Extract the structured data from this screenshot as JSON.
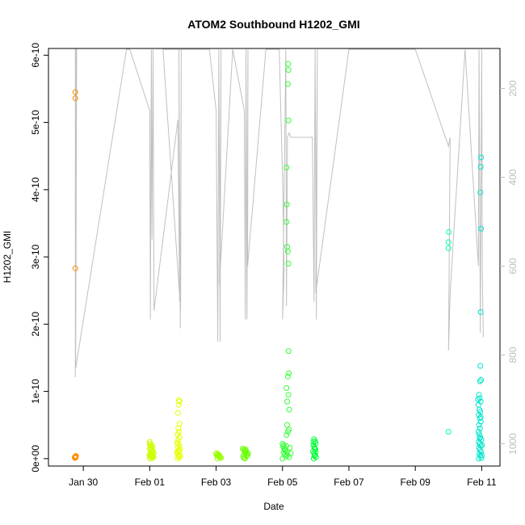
{
  "chart_data": {
    "type": "scatter",
    "title": "ATOM2 Southbound H1202_GMI",
    "xlabel": "Date",
    "ylabel": "H1202_GMI",
    "x_ticks": [
      {
        "day": 2,
        "label": "Jan 30"
      },
      {
        "day": 4,
        "label": "Feb 01"
      },
      {
        "day": 6,
        "label": "Feb 03"
      },
      {
        "day": 8,
        "label": "Feb 05"
      },
      {
        "day": 10,
        "label": "Feb 07"
      },
      {
        "day": 12,
        "label": "Feb 09"
      },
      {
        "day": 14,
        "label": "Feb 11"
      }
    ],
    "y_ticks": [
      {
        "value": 0,
        "label": "0e+00"
      },
      {
        "value": 1e-10,
        "label": "1e-10"
      },
      {
        "value": 2e-10,
        "label": "2e-10"
      },
      {
        "value": 3e-10,
        "label": "3e-10"
      },
      {
        "value": 4e-10,
        "label": "4e-10"
      },
      {
        "value": 5e-10,
        "label": "5e-10"
      },
      {
        "value": 6e-10,
        "label": "6e-10"
      }
    ],
    "right_ticks": [
      {
        "value": 200,
        "label": "200"
      },
      {
        "value": 400,
        "label": "400"
      },
      {
        "value": 600,
        "label": "600"
      },
      {
        "value": 800,
        "label": "800"
      },
      {
        "value": 1000,
        "label": "1000"
      }
    ],
    "xlim": [
      0.95,
      14.55
    ],
    "ylim": [
      -1.1e-11,
      6.1e-10
    ],
    "right_ylim": [
      1050,
      110
    ],
    "grid": false,
    "colors": {
      "axis": "#000000",
      "right_axis": "#bdbdbd",
      "track": "#c0c0c0"
    },
    "series": [
      {
        "color": "#ff8c00",
        "points": [
          [
            1.76,
            5.45e-10
          ],
          [
            1.76,
            5.36e-10
          ],
          [
            1.76,
            2.83e-10
          ],
          [
            1.74,
            2e-12
          ],
          [
            1.76,
            3e-12
          ],
          [
            1.78,
            4e-12
          ],
          [
            1.75,
            1e-12
          ],
          [
            1.77,
            2e-12
          ]
        ]
      },
      {
        "color": "#ccff00",
        "points": [
          [
            4.0,
            2.5e-11
          ],
          [
            4.02,
            2.2e-11
          ],
          [
            4.05,
            2e-11
          ],
          [
            4.08,
            1.8e-11
          ],
          [
            4.0,
            1.5e-11
          ],
          [
            4.03,
            1.2e-11
          ],
          [
            4.06,
            1e-11
          ],
          [
            4.09,
            9e-12
          ],
          [
            4.01,
            7e-12
          ],
          [
            4.04,
            6e-12
          ],
          [
            4.07,
            5e-12
          ],
          [
            4.1,
            4e-12
          ],
          [
            4.02,
            3e-12
          ],
          [
            4.05,
            2e-12
          ],
          [
            4.08,
            1e-12
          ],
          [
            4.0,
            0
          ],
          [
            4.03,
            1.6e-11
          ],
          [
            4.06,
            1.3e-11
          ],
          [
            4.12,
            8e-12
          ],
          [
            4.1,
            1.1e-11
          ],
          [
            4.04,
            1.9e-11
          ],
          [
            3.99,
            5e-12
          ],
          [
            4.11,
            2e-12
          ],
          [
            4.07,
            1.4e-11
          ],
          [
            4.0,
            2.2e-11
          ]
        ]
      },
      {
        "color": "#e6ff00",
        "points": [
          [
            4.88,
            8.7e-11
          ],
          [
            4.9,
            8.5e-11
          ],
          [
            4.87,
            8e-11
          ],
          [
            4.85,
            6.8e-11
          ],
          [
            4.9,
            5.2e-11
          ],
          [
            4.86,
            4.5e-11
          ],
          [
            4.88,
            4e-11
          ],
          [
            4.84,
            3.6e-11
          ],
          [
            4.9,
            3.2e-11
          ],
          [
            4.86,
            2.8e-11
          ],
          [
            4.83,
            2.4e-11
          ],
          [
            4.89,
            2e-11
          ],
          [
            4.85,
            1.7e-11
          ],
          [
            4.91,
            1.4e-11
          ],
          [
            4.87,
            1.1e-11
          ],
          [
            4.83,
            8e-12
          ],
          [
            4.9,
            6e-12
          ],
          [
            4.86,
            4e-12
          ],
          [
            4.88,
            2e-12
          ],
          [
            4.84,
            0
          ],
          [
            4.92,
            3e-12
          ],
          [
            4.82,
            1e-11
          ],
          [
            4.89,
            1.2e-11
          ],
          [
            4.85,
            2.2e-11
          ]
        ]
      },
      {
        "color": "#99ff00",
        "points": [
          [
            6.0,
            8e-12
          ],
          [
            6.03,
            6e-12
          ],
          [
            6.06,
            4e-12
          ],
          [
            6.09,
            3e-12
          ],
          [
            6.12,
            2e-12
          ],
          [
            6.15,
            1e-12
          ],
          [
            6.02,
            5e-12
          ],
          [
            6.05,
            7e-12
          ],
          [
            6.08,
            4e-12
          ],
          [
            6.11,
            2e-12
          ],
          [
            6.04,
            0
          ],
          [
            6.1,
            5e-12
          ]
        ]
      },
      {
        "color": "#66ff00",
        "points": [
          [
            6.8,
            1.5e-11
          ],
          [
            6.83,
            1.3e-11
          ],
          [
            6.86,
            1.1e-11
          ],
          [
            6.89,
            9e-12
          ],
          [
            6.92,
            7e-12
          ],
          [
            6.95,
            5e-12
          ],
          [
            6.81,
            3e-12
          ],
          [
            6.84,
            1e-12
          ],
          [
            6.87,
            0
          ],
          [
            6.9,
            1.2e-11
          ],
          [
            6.93,
            4e-12
          ],
          [
            6.96,
            8e-12
          ],
          [
            6.85,
            6e-12
          ],
          [
            6.88,
            1.4e-11
          ]
        ]
      },
      {
        "color": "#33ff33",
        "points": [
          [
            8.17,
            5.87e-10
          ],
          [
            8.18,
            5.78e-10
          ],
          [
            8.16,
            5.57e-10
          ],
          [
            8.18,
            5.03e-10
          ],
          [
            8.12,
            4.33e-10
          ],
          [
            8.13,
            3.78e-10
          ],
          [
            8.12,
            3.52e-10
          ],
          [
            8.14,
            3.15e-10
          ],
          [
            8.16,
            3.08e-10
          ],
          [
            8.18,
            2.9e-10
          ],
          [
            8.18,
            1.6e-10
          ],
          [
            8.19,
            1.27e-10
          ],
          [
            8.16,
            1.22e-10
          ],
          [
            8.12,
            1.05e-10
          ],
          [
            8.18,
            9.5e-11
          ],
          [
            8.14,
            8.5e-11
          ],
          [
            8.2,
            7.3e-11
          ],
          [
            8.14,
            5e-11
          ],
          [
            8.19,
            4.3e-11
          ],
          [
            8.16,
            4e-11
          ],
          [
            8.12,
            3.5e-11
          ],
          [
            8.0,
            2.2e-11
          ],
          [
            8.02,
            1.8e-11
          ],
          [
            8.05,
            1.5e-11
          ],
          [
            8.08,
            1.2e-11
          ],
          [
            8.03,
            9e-12
          ],
          [
            8.06,
            6e-12
          ],
          [
            8.1,
            3e-12
          ],
          [
            8.0,
            0
          ],
          [
            8.13,
            1e-11
          ],
          [
            8.04,
            2e-11
          ],
          [
            8.15,
            5e-12
          ],
          [
            8.22,
            1.6e-11
          ],
          [
            8.25,
            8e-12
          ],
          [
            8.2,
            2e-12
          ],
          [
            8.11,
            1.9e-11
          ],
          [
            8.07,
            1.3e-11
          ]
        ]
      },
      {
        "color": "#00ff33",
        "points": [
          [
            8.95,
            2.9e-11
          ],
          [
            8.98,
            2.6e-11
          ],
          [
            9.0,
            2.3e-11
          ],
          [
            8.93,
            2e-11
          ],
          [
            8.96,
            1.7e-11
          ],
          [
            8.99,
            1.4e-11
          ],
          [
            8.92,
            1.1e-11
          ],
          [
            8.95,
            8e-12
          ],
          [
            8.98,
            5e-12
          ],
          [
            9.01,
            2e-12
          ],
          [
            8.94,
            0
          ],
          [
            8.97,
            1.5e-11
          ],
          [
            9.0,
            1e-11
          ],
          [
            8.93,
            2.5e-11
          ],
          [
            8.96,
            4e-12
          ]
        ]
      },
      {
        "color": "#00ffb0",
        "points": [
          [
            13.01,
            3.37e-10
          ],
          [
            13.0,
            3.22e-10
          ],
          [
            13.0,
            3.13e-10
          ],
          [
            13.0,
            4e-11
          ]
        ]
      },
      {
        "color": "#00e5cc",
        "points": [
          [
            13.98,
            4.48e-10
          ],
          [
            13.97,
            4.34e-10
          ],
          [
            13.96,
            3.96e-10
          ],
          [
            13.98,
            3.42e-10
          ],
          [
            13.97,
            2.18e-10
          ],
          [
            13.96,
            1.38e-10
          ],
          [
            13.98,
            1.17e-10
          ],
          [
            13.95,
            1.15e-10
          ],
          [
            13.92,
            9.5e-11
          ],
          [
            13.94,
            9e-11
          ],
          [
            13.97,
            8.5e-11
          ],
          [
            13.9,
            8e-11
          ],
          [
            13.93,
            7.3e-11
          ],
          [
            13.96,
            7e-11
          ],
          [
            13.91,
            6.5e-11
          ],
          [
            13.94,
            6e-11
          ],
          [
            13.97,
            5.5e-11
          ],
          [
            13.92,
            5e-11
          ],
          [
            13.95,
            4.5e-11
          ],
          [
            13.9,
            4e-11
          ],
          [
            13.93,
            3.6e-11
          ],
          [
            13.96,
            3.2e-11
          ],
          [
            13.99,
            2.8e-11
          ],
          [
            13.91,
            2.5e-11
          ],
          [
            13.94,
            2.2e-11
          ],
          [
            13.97,
            1.9e-11
          ],
          [
            13.92,
            1.6e-11
          ],
          [
            13.95,
            1.3e-11
          ],
          [
            13.98,
            1e-11
          ],
          [
            13.93,
            7e-12
          ],
          [
            13.96,
            4e-12
          ],
          [
            13.99,
            1e-12
          ],
          [
            13.91,
            0
          ],
          [
            14.0,
            5e-12
          ],
          [
            13.94,
            3e-11
          ],
          [
            14.01,
            2e-11
          ],
          [
            13.89,
            8.8e-11
          ],
          [
            13.97,
            6.2e-11
          ]
        ]
      }
    ],
    "track": [
      [
        1.76,
        112
      ],
      [
        1.76,
        850
      ],
      [
        1.78,
        112
      ],
      [
        1.79,
        112
      ],
      [
        1.8,
        112
      ],
      [
        1.78,
        600
      ],
      [
        1.77,
        830
      ],
      [
        3.3,
        112
      ],
      [
        3.4,
        112
      ],
      [
        4.0,
        250
      ],
      [
        4.02,
        720
      ],
      [
        4.05,
        112
      ],
      [
        4.07,
        540
      ],
      [
        4.1,
        112
      ],
      [
        4.13,
        700
      ],
      [
        4.85,
        270
      ],
      [
        4.9,
        680
      ],
      [
        4.88,
        112
      ],
      [
        4.92,
        740
      ],
      [
        4.95,
        112
      ],
      [
        4.93,
        700
      ],
      [
        4.4,
        112
      ],
      [
        5.4,
        112
      ],
      [
        5.8,
        112
      ],
      [
        6.0,
        250
      ],
      [
        6.05,
        770
      ],
      [
        6.08,
        112
      ],
      [
        6.12,
        770
      ],
      [
        6.15,
        112
      ],
      [
        6.1,
        640
      ],
      [
        6.5,
        112
      ],
      [
        6.85,
        250
      ],
      [
        6.88,
        720
      ],
      [
        6.9,
        112
      ],
      [
        6.93,
        720
      ],
      [
        6.96,
        112
      ],
      [
        6.95,
        600
      ],
      [
        7.5,
        112
      ],
      [
        7.9,
        112
      ],
      [
        8.0,
        400
      ],
      [
        8.05,
        610
      ],
      [
        8.0,
        720
      ],
      [
        8.1,
        112
      ],
      [
        8.12,
        690
      ],
      [
        8.15,
        310
      ],
      [
        8.2,
        300
      ],
      [
        8.25,
        310
      ],
      [
        8.9,
        310
      ],
      [
        8.95,
        680
      ],
      [
        8.98,
        112
      ],
      [
        9.02,
        720
      ],
      [
        9.05,
        112
      ],
      [
        9.0,
        660
      ],
      [
        10.0,
        112
      ],
      [
        12.0,
        112
      ],
      [
        13.0,
        330
      ],
      [
        13.05,
        310
      ],
      [
        13.0,
        790
      ],
      [
        13.05,
        660
      ],
      [
        13.5,
        112
      ],
      [
        13.9,
        600
      ],
      [
        13.92,
        112
      ],
      [
        13.96,
        750
      ],
      [
        14.0,
        112
      ],
      [
        14.02,
        620
      ],
      [
        14.05,
        760
      ]
    ]
  }
}
